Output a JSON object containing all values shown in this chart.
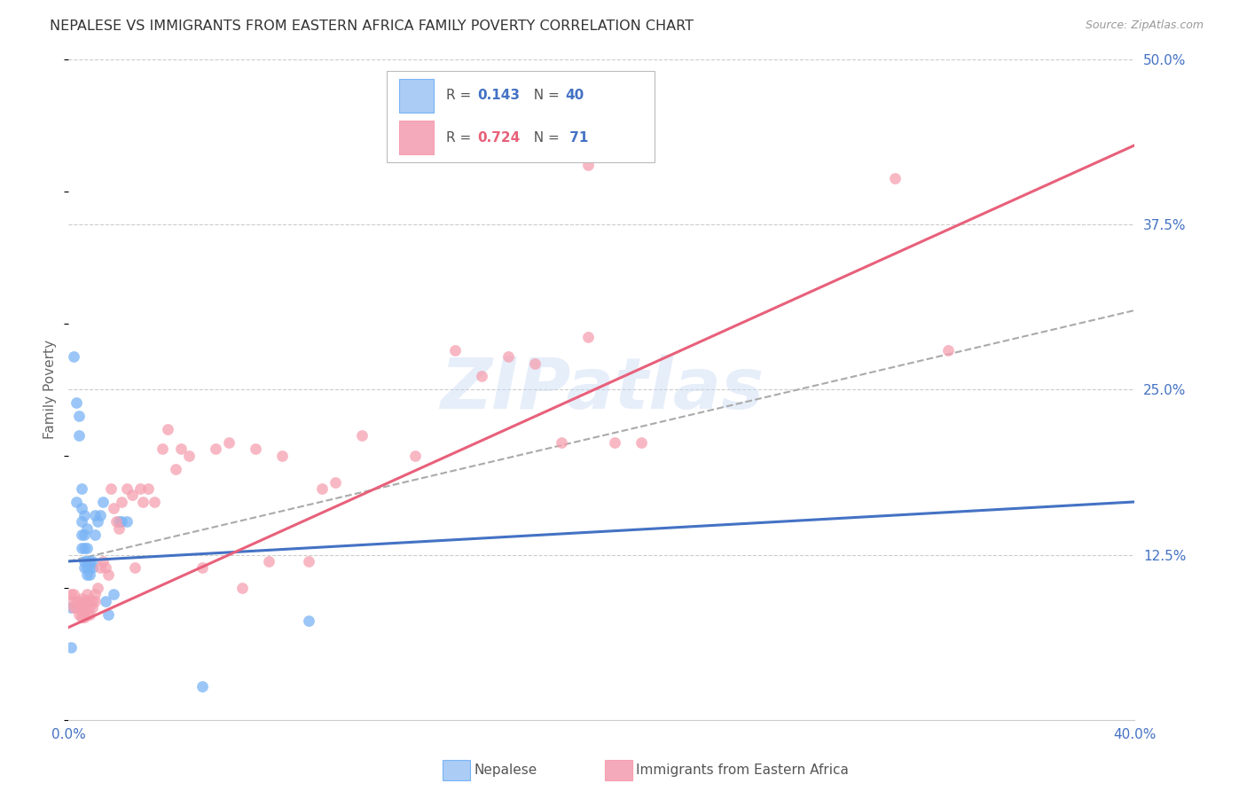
{
  "title": "NEPALESE VS IMMIGRANTS FROM EASTERN AFRICA FAMILY POVERTY CORRELATION CHART",
  "source": "Source: ZipAtlas.com",
  "ylabel": "Family Poverty",
  "watermark": "ZIPatlas",
  "xlim": [
    0.0,
    0.4
  ],
  "ylim": [
    0.0,
    0.5
  ],
  "yticks_right": [
    0.0,
    0.125,
    0.25,
    0.375,
    0.5
  ],
  "yticklabels_right": [
    "",
    "12.5%",
    "25.0%",
    "37.5%",
    "50.0%"
  ],
  "color_nepalese": "#7ab4f5",
  "color_eastern_africa": "#f5a0b0",
  "color_line_nepalese": "#4472c4",
  "color_line_eastern_africa": "#e8607a",
  "color_tick_labels": "#4472c4",
  "grid_color": "#cccccc",
  "background_color": "#ffffff",
  "nepalese_line_x": [
    0.0,
    0.4
  ],
  "nepalese_line_y": [
    0.12,
    0.165
  ],
  "eastern_africa_line_x": [
    0.0,
    0.4
  ],
  "eastern_africa_line_y": [
    0.07,
    0.435
  ],
  "dashed_line_x": [
    0.0,
    0.4
  ],
  "dashed_line_y": [
    0.12,
    0.31
  ],
  "nepalese_scatter_x": [
    0.001,
    0.001,
    0.002,
    0.003,
    0.003,
    0.004,
    0.004,
    0.005,
    0.005,
    0.005,
    0.005,
    0.005,
    0.006,
    0.006,
    0.006,
    0.006,
    0.006,
    0.007,
    0.007,
    0.007,
    0.007,
    0.007,
    0.008,
    0.008,
    0.008,
    0.009,
    0.009,
    0.01,
    0.01,
    0.011,
    0.012,
    0.013,
    0.014,
    0.015,
    0.017,
    0.019,
    0.02,
    0.022,
    0.05,
    0.09
  ],
  "nepalese_scatter_y": [
    0.055,
    0.085,
    0.275,
    0.24,
    0.165,
    0.215,
    0.23,
    0.13,
    0.14,
    0.15,
    0.16,
    0.175,
    0.115,
    0.12,
    0.13,
    0.14,
    0.155,
    0.11,
    0.115,
    0.12,
    0.13,
    0.145,
    0.11,
    0.115,
    0.12,
    0.115,
    0.12,
    0.14,
    0.155,
    0.15,
    0.155,
    0.165,
    0.09,
    0.08,
    0.095,
    0.15,
    0.15,
    0.15,
    0.025,
    0.075
  ],
  "eastern_africa_scatter_x": [
    0.001,
    0.001,
    0.002,
    0.002,
    0.003,
    0.003,
    0.004,
    0.004,
    0.005,
    0.005,
    0.005,
    0.005,
    0.006,
    0.006,
    0.006,
    0.007,
    0.007,
    0.007,
    0.007,
    0.008,
    0.008,
    0.008,
    0.009,
    0.009,
    0.01,
    0.01,
    0.011,
    0.012,
    0.013,
    0.014,
    0.015,
    0.016,
    0.017,
    0.018,
    0.019,
    0.02,
    0.022,
    0.024,
    0.025,
    0.027,
    0.028,
    0.03,
    0.032,
    0.035,
    0.037,
    0.04,
    0.042,
    0.045,
    0.05,
    0.055,
    0.06,
    0.065,
    0.07,
    0.075,
    0.08,
    0.09,
    0.095,
    0.1,
    0.11,
    0.13,
    0.145,
    0.155,
    0.165,
    0.175,
    0.185,
    0.195,
    0.205,
    0.215,
    0.195,
    0.31,
    0.33
  ],
  "eastern_africa_scatter_y": [
    0.09,
    0.095,
    0.085,
    0.095,
    0.085,
    0.09,
    0.08,
    0.09,
    0.078,
    0.082,
    0.087,
    0.092,
    0.078,
    0.083,
    0.088,
    0.08,
    0.085,
    0.09,
    0.095,
    0.08,
    0.086,
    0.091,
    0.085,
    0.09,
    0.09,
    0.095,
    0.1,
    0.115,
    0.12,
    0.115,
    0.11,
    0.175,
    0.16,
    0.15,
    0.145,
    0.165,
    0.175,
    0.17,
    0.115,
    0.175,
    0.165,
    0.175,
    0.165,
    0.205,
    0.22,
    0.19,
    0.205,
    0.2,
    0.115,
    0.205,
    0.21,
    0.1,
    0.205,
    0.12,
    0.2,
    0.12,
    0.175,
    0.18,
    0.215,
    0.2,
    0.28,
    0.26,
    0.275,
    0.27,
    0.21,
    0.42,
    0.21,
    0.21,
    0.29,
    0.41,
    0.28
  ]
}
